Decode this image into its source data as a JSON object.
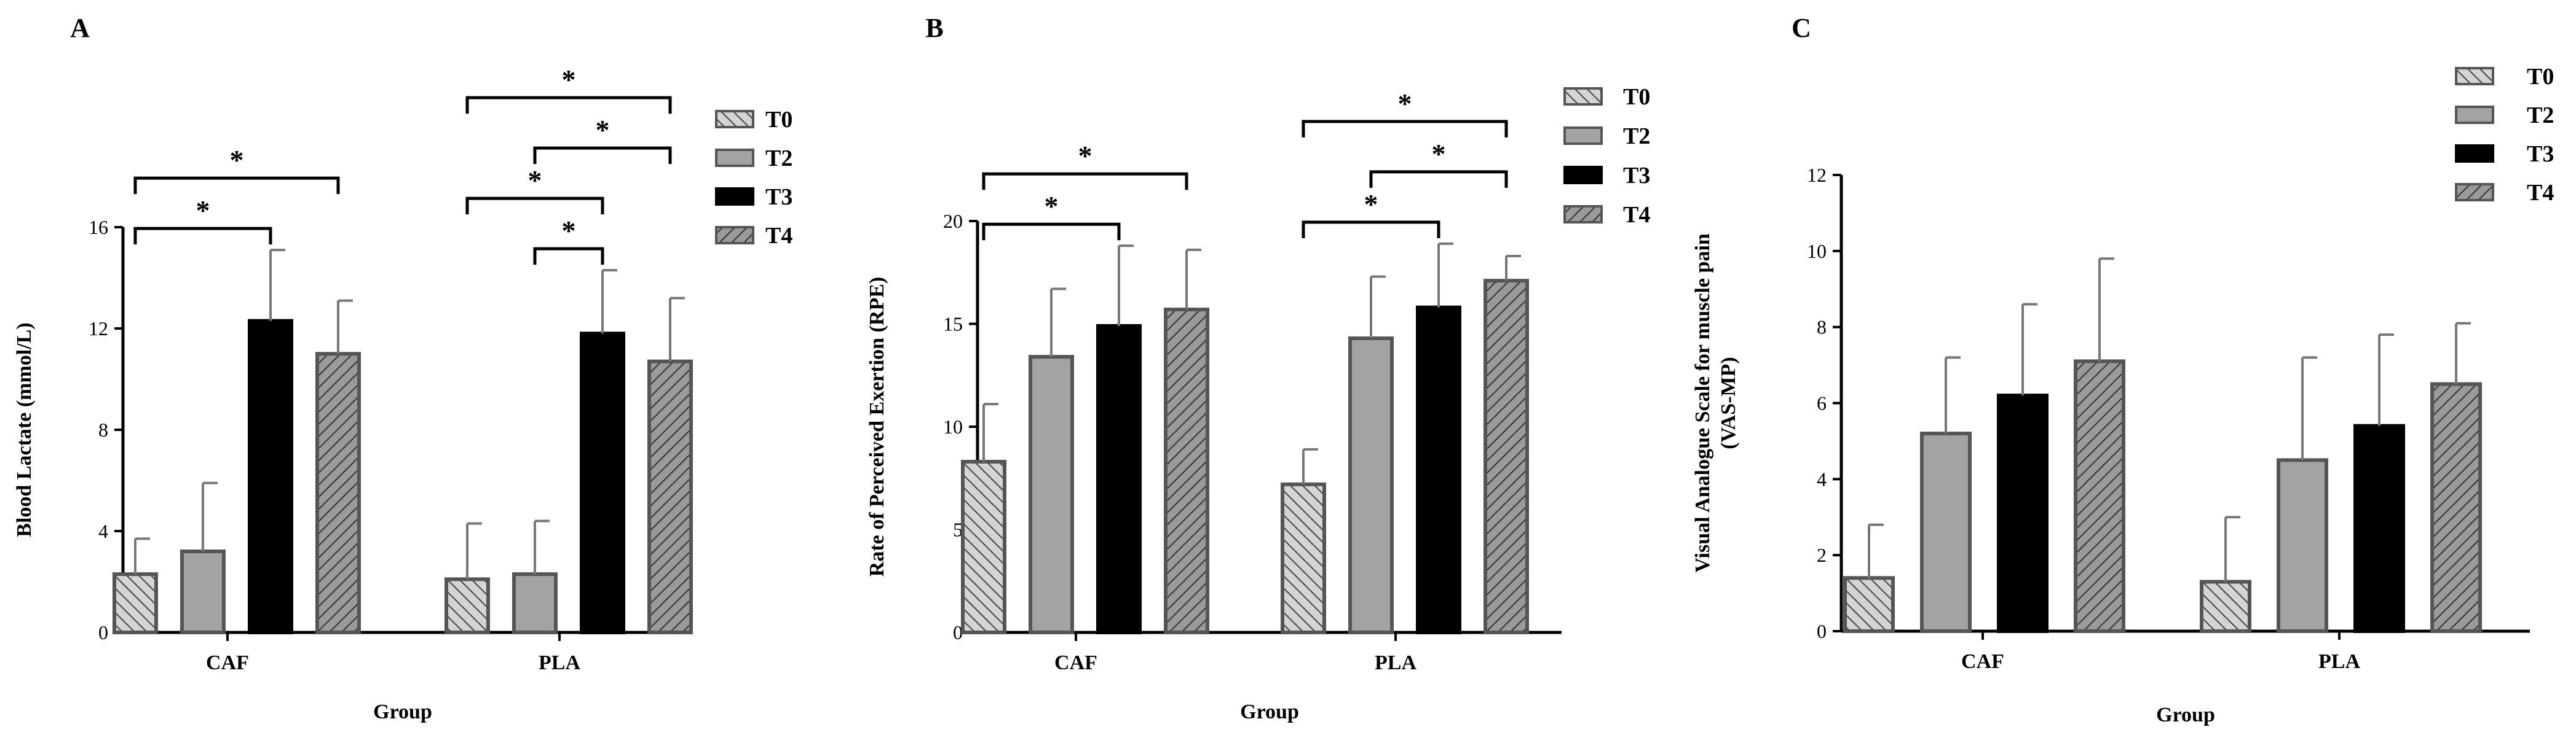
{
  "colors": {
    "T0": "#d4d4d4",
    "T2": "#a3a3a3",
    "T3": "#000000",
    "T4": "#9a9a9a",
    "axis": "#000000"
  },
  "chart_data": [
    {
      "type": "bar",
      "panel": "A",
      "xlabel": "Group",
      "ylabel": "Blood Lactate (mmol/L)",
      "ylim": [
        0,
        16
      ],
      "yticks": [
        0,
        4,
        8,
        12,
        16
      ],
      "categories": [
        "CAF",
        "PLA"
      ],
      "series": [
        {
          "name": "T0",
          "values": [
            2.3,
            2.1
          ],
          "errors": [
            1.4,
            2.2
          ]
        },
        {
          "name": "T2",
          "values": [
            3.2,
            2.3
          ],
          "errors": [
            2.7,
            2.1
          ]
        },
        {
          "name": "T3",
          "values": [
            12.3,
            11.8
          ],
          "errors": [
            2.8,
            2.5
          ]
        },
        {
          "name": "T4",
          "values": [
            11.0,
            10.7
          ],
          "errors": [
            2.1,
            2.5
          ]
        }
      ],
      "significance": [
        {
          "category": 0,
          "from": "T0",
          "to": "T3",
          "label": "*"
        },
        {
          "category": 0,
          "from": "T0",
          "to": "T4",
          "label": "*"
        },
        {
          "category": 1,
          "from": "T2",
          "to": "T3",
          "label": "*"
        },
        {
          "category": 1,
          "from": "T0",
          "to": "T3",
          "label": "*"
        },
        {
          "category": 1,
          "from": "T2",
          "to": "T4",
          "label": "*"
        },
        {
          "category": 1,
          "from": "T0",
          "to": "T4",
          "label": "*"
        }
      ],
      "legend": [
        "T0",
        "T2",
        "T3",
        "T4"
      ]
    },
    {
      "type": "bar",
      "panel": "B",
      "xlabel": "Group",
      "ylabel": "Rate of Perceived Exertion (RPE)",
      "ylim": [
        0,
        20
      ],
      "yticks": [
        0,
        5,
        10,
        15,
        20
      ],
      "categories": [
        "CAF",
        "PLA"
      ],
      "series": [
        {
          "name": "T0",
          "values": [
            8.3,
            7.2
          ],
          "errors": [
            2.8,
            1.7
          ]
        },
        {
          "name": "T2",
          "values": [
            13.4,
            14.3
          ],
          "errors": [
            3.3,
            3.0
          ]
        },
        {
          "name": "T3",
          "values": [
            14.9,
            15.8
          ],
          "errors": [
            3.9,
            3.1
          ]
        },
        {
          "name": "T4",
          "values": [
            15.7,
            17.1
          ],
          "errors": [
            2.9,
            1.2
          ]
        }
      ],
      "significance": [
        {
          "category": 0,
          "from": "T0",
          "to": "T3",
          "label": "*"
        },
        {
          "category": 0,
          "from": "T0",
          "to": "T4",
          "label": "*"
        },
        {
          "category": 1,
          "from": "T0",
          "to": "T3",
          "label": "*"
        },
        {
          "category": 1,
          "from": "T2",
          "to": "T4",
          "label": "*"
        },
        {
          "category": 1,
          "from": "T0",
          "to": "T4",
          "label": "*"
        }
      ],
      "legend": [
        "T0",
        "T2",
        "T3",
        "T4"
      ]
    },
    {
      "type": "bar",
      "panel": "C",
      "xlabel": "Group",
      "ylabel": "Visual Analogue Scale for muscle pain",
      "ylabel2": "(VAS-MP)",
      "ylim": [
        0,
        12
      ],
      "yticks": [
        0,
        2,
        4,
        6,
        8,
        10,
        12
      ],
      "categories": [
        "CAF",
        "PLA"
      ],
      "series": [
        {
          "name": "T0",
          "values": [
            1.4,
            1.3
          ],
          "errors": [
            1.4,
            1.7
          ]
        },
        {
          "name": "T2",
          "values": [
            5.2,
            4.5
          ],
          "errors": [
            2.0,
            2.7
          ]
        },
        {
          "name": "T3",
          "values": [
            6.2,
            5.4
          ],
          "errors": [
            2.4,
            2.4
          ]
        },
        {
          "name": "T4",
          "values": [
            7.1,
            6.5
          ],
          "errors": [
            2.7,
            1.6
          ]
        }
      ],
      "significance": [],
      "legend": [
        "T0",
        "T2",
        "T3",
        "T4"
      ]
    }
  ]
}
